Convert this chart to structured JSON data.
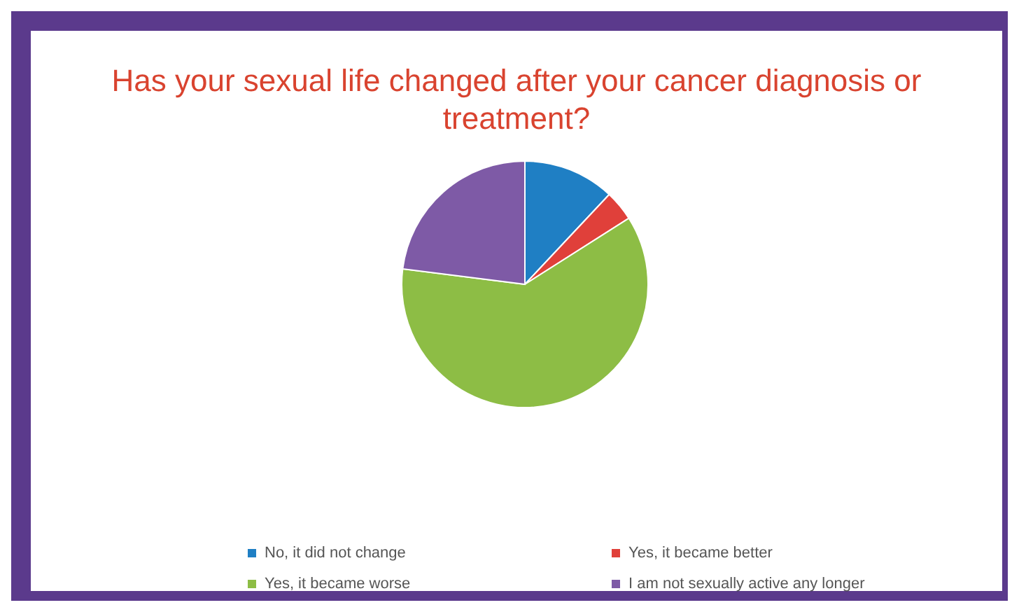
{
  "chart_data": {
    "type": "pie",
    "title": "Has your sexual life changed after your cancer diagnosis or treatment?",
    "categories": [
      "No, it did not change",
      "Yes, it became better",
      "Yes, it became worse",
      "I am not sexually active any longer"
    ],
    "values": [
      12,
      4,
      61,
      23
    ],
    "colors": [
      "#1f7fc4",
      "#e0403a",
      "#8dbd45",
      "#7e5aa6"
    ],
    "legend": "bottom"
  }
}
